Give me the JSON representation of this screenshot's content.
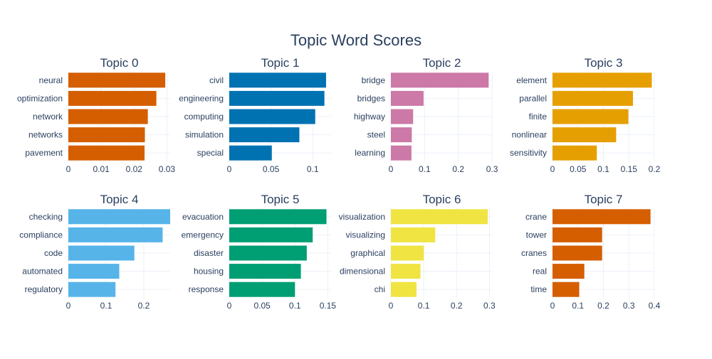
{
  "chart_data": {
    "type": "bar",
    "orientation": "horizontal",
    "title": "Topic Word Scores",
    "grid": true,
    "legend": "none",
    "panels": [
      {
        "title": "Topic 0",
        "color": "#D55E00",
        "words": [
          "neural",
          "optimization",
          "network",
          "networks",
          "pavement"
        ],
        "values": [
          0.0295,
          0.0268,
          0.0242,
          0.0233,
          0.0232
        ],
        "xlim": [
          0,
          0.031
        ],
        "ticks": [
          0,
          0.01,
          0.02,
          0.03
        ],
        "tick_labels": [
          "0",
          "0.01",
          "0.02",
          "0.03"
        ]
      },
      {
        "title": "Topic 1",
        "color": "#0072B2",
        "words": [
          "civil",
          "engineering",
          "computing",
          "simulation",
          "special"
        ],
        "values": [
          0.116,
          0.114,
          0.103,
          0.084,
          0.051
        ],
        "xlim": [
          0,
          0.122
        ],
        "ticks": [
          0,
          0.05,
          0.1
        ],
        "tick_labels": [
          "0",
          "0.05",
          "0.1"
        ]
      },
      {
        "title": "Topic 2",
        "color": "#CC79A7",
        "words": [
          "bridge",
          "bridges",
          "highway",
          "steel",
          "learning"
        ],
        "values": [
          0.29,
          0.097,
          0.066,
          0.062,
          0.061
        ],
        "xlim": [
          0,
          0.302
        ],
        "ticks": [
          0,
          0.1,
          0.2,
          0.3
        ],
        "tick_labels": [
          "0",
          "0.1",
          "0.2",
          "0.3"
        ]
      },
      {
        "title": "Topic 3",
        "color": "#E69F00",
        "words": [
          "element",
          "parallel",
          "finite",
          "nonlinear",
          "sensitivity"
        ],
        "values": [
          0.195,
          0.158,
          0.149,
          0.125,
          0.087
        ],
        "xlim": [
          0,
          0.2
        ],
        "ticks": [
          0,
          0.05,
          0.1,
          0.15,
          0.2
        ],
        "tick_labels": [
          "0",
          "0.05",
          "0.1",
          "0.15",
          "0.2"
        ]
      },
      {
        "title": "Topic 4",
        "color": "#56B4E9",
        "words": [
          "checking",
          "compliance",
          "code",
          "automated",
          "regulatory"
        ],
        "values": [
          0.27,
          0.25,
          0.175,
          0.135,
          0.125
        ],
        "xlim": [
          0,
          0.27
        ],
        "ticks": [
          0,
          0.1,
          0.2
        ],
        "tick_labels": [
          "0",
          "0.1",
          "0.2"
        ]
      },
      {
        "title": "Topic 5",
        "color": "#009E73",
        "words": [
          "evacuation",
          "emergency",
          "disaster",
          "housing",
          "response"
        ],
        "values": [
          0.148,
          0.127,
          0.118,
          0.109,
          0.1
        ],
        "xlim": [
          0,
          0.155
        ],
        "ticks": [
          0,
          0.05,
          0.1,
          0.15
        ],
        "tick_labels": [
          "0",
          "0.05",
          "0.1",
          "0.15"
        ]
      },
      {
        "title": "Topic 6",
        "color": "#F0E442",
        "words": [
          "visualization",
          "visualizing",
          "graphical",
          "dimensional",
          "chi"
        ],
        "values": [
          0.295,
          0.135,
          0.1,
          0.09,
          0.078
        ],
        "xlim": [
          0,
          0.31
        ],
        "ticks": [
          0,
          0.1,
          0.2,
          0.3
        ],
        "tick_labels": [
          "0",
          "0.1",
          "0.2",
          "0.3"
        ]
      },
      {
        "title": "Topic 7",
        "color": "#D55E00",
        "words": [
          "crane",
          "tower",
          "cranes",
          "real",
          "time"
        ],
        "values": [
          0.385,
          0.195,
          0.195,
          0.125,
          0.105
        ],
        "xlim": [
          0,
          0.4
        ],
        "ticks": [
          0,
          0.1,
          0.2,
          0.3,
          0.4
        ],
        "tick_labels": [
          "0",
          "0.1",
          "0.2",
          "0.3",
          "0.4"
        ]
      }
    ]
  }
}
